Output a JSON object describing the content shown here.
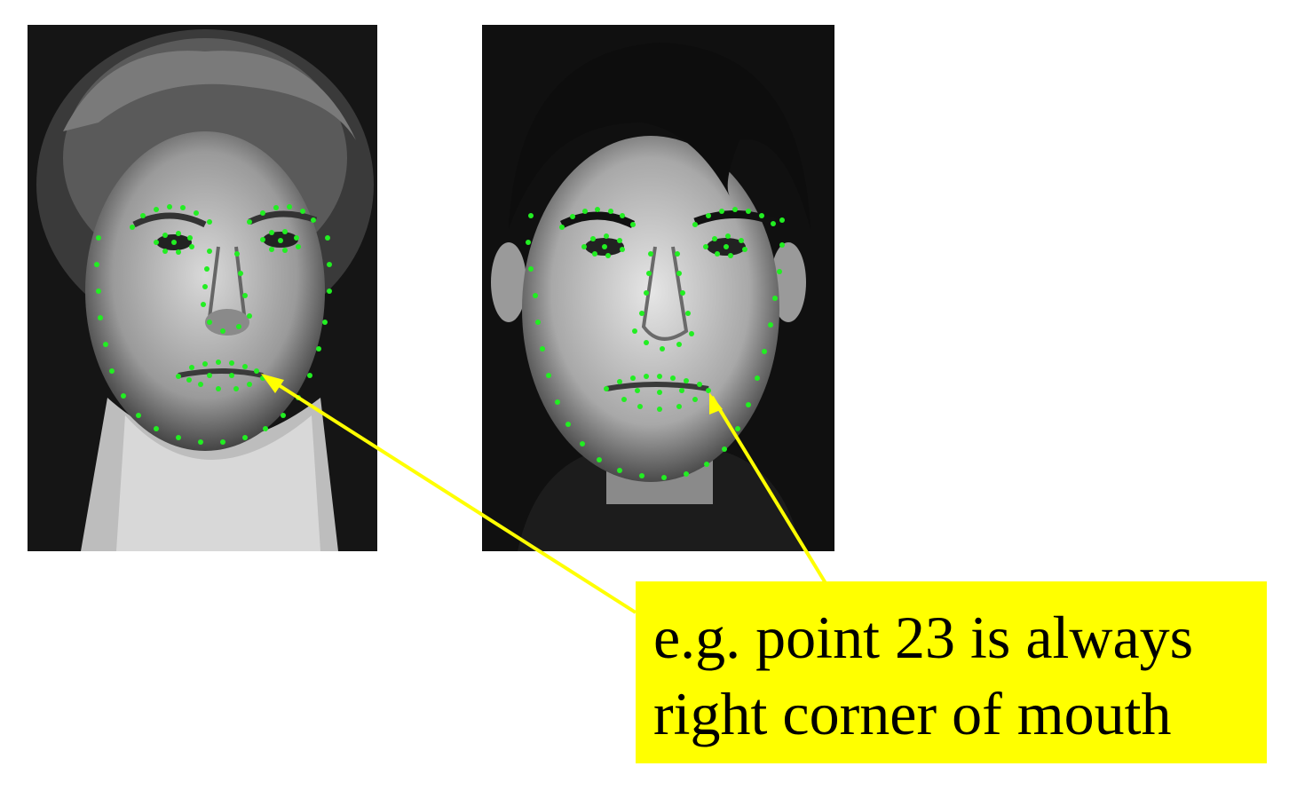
{
  "images": [
    {
      "subject": "older woman portrait with green facial landmark points"
    },
    {
      "subject": "young man portrait with green facial landmark points"
    }
  ],
  "callout": {
    "line1": "e.g. point 23 is always",
    "line2": "right corner of mouth"
  },
  "colors": {
    "landmark": "#22ee22",
    "arrow": "#ffff00",
    "callout_bg": "#ffff00"
  }
}
